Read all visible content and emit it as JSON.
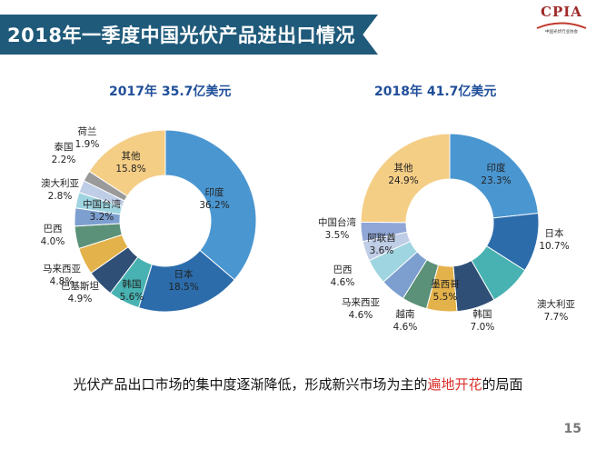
{
  "header": {
    "title": "2018年一季度中国光伏产品进出口情况"
  },
  "logo": {
    "name": "CPIA",
    "subtitle": "中国光伏行业协会"
  },
  "chart_data": [
    {
      "type": "pie",
      "variant": "donut",
      "title": "2017年 35.7亿美元",
      "start_angle_deg": 0,
      "categories": [
        "印度",
        "日本",
        "韩国",
        "巴基斯坦",
        "马来西亚",
        "巴西",
        "中国台湾",
        "澳大利亚",
        "泰国",
        "荷兰",
        "其他"
      ],
      "values": [
        36.2,
        18.5,
        5.6,
        4.9,
        4.8,
        4.0,
        3.2,
        2.8,
        2.2,
        1.9,
        15.8
      ],
      "labels": [
        "36.2%",
        "18.5%",
        "5.6%",
        "4.9%",
        "4.8%",
        "4.0%",
        "3.2%",
        "2.8%",
        "2.2%",
        "1.9%",
        "15.8%"
      ],
      "colors": [
        "#4a96d0",
        "#2c6cab",
        "#48b2b2",
        "#2f4f77",
        "#e4b24a",
        "#5b9178",
        "#7c9fcf",
        "#9fd5e0",
        "#bfcde6",
        "#9a9a9a",
        "#f5ce86"
      ]
    },
    {
      "type": "pie",
      "variant": "donut",
      "title": "2018年 41.7亿美元",
      "start_angle_deg": 0,
      "categories": [
        "印度",
        "日本",
        "澳大利亚",
        "韩国",
        "墨西哥",
        "越南",
        "马来西亚",
        "巴西",
        "阿联酋",
        "中国台湾",
        "其他"
      ],
      "values": [
        23.3,
        10.7,
        7.7,
        7.0,
        5.5,
        4.6,
        4.6,
        4.6,
        3.6,
        3.5,
        24.9
      ],
      "labels": [
        "23.3%",
        "10.7%",
        "7.7%",
        "7.0%",
        "5.5%",
        "4.6%",
        "4.6%",
        "4.6%",
        "3.6%",
        "3.5%",
        "24.9%"
      ],
      "colors": [
        "#4a96d0",
        "#2c6cab",
        "#48b2b2",
        "#2f4f77",
        "#e4b24a",
        "#5b9178",
        "#7c9fcf",
        "#9fd5e0",
        "#bfcde6",
        "#8fa6d6",
        "#f5ce86"
      ]
    }
  ],
  "conclusion": {
    "before": "光伏产品出口市场的集中度逐渐降低，形成新兴市场为主的",
    "highlight": "遍地开花",
    "after": "的局面"
  },
  "page_number": "15"
}
